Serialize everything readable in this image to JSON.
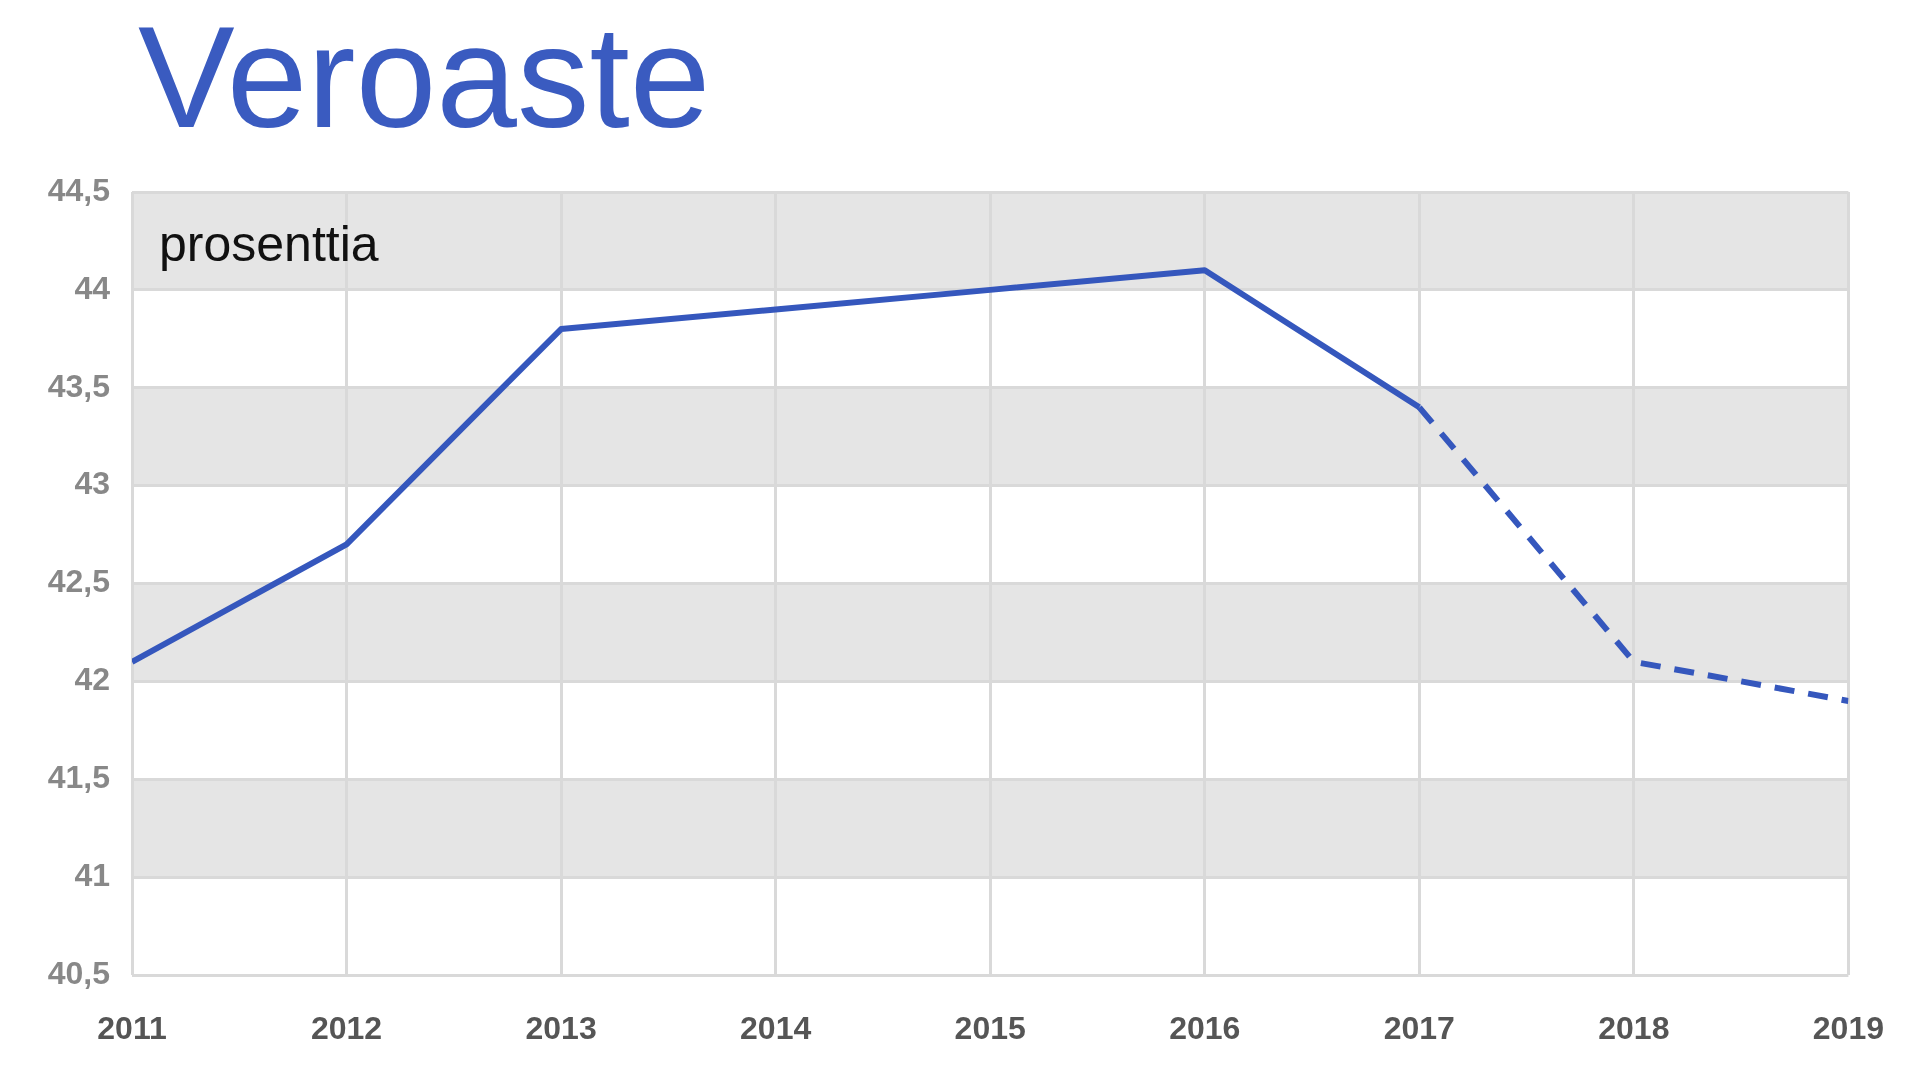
{
  "chart_data": {
    "type": "line",
    "title": "Veroaste",
    "ylabel": "prosenttia",
    "x": [
      2011,
      2012,
      2013,
      2014,
      2015,
      2016,
      2017,
      2018,
      2019
    ],
    "xlim": [
      2011,
      2019
    ],
    "xticks": [
      2011,
      2012,
      2013,
      2014,
      2015,
      2016,
      2017,
      2018,
      2019
    ],
    "ylim": [
      40.5,
      44.5
    ],
    "yticks": [
      {
        "value": 40.5,
        "label": "40,5"
      },
      41,
      {
        "value": 41.5,
        "label": "41,5"
      },
      42,
      {
        "value": 42.5,
        "label": "42,5"
      },
      43,
      {
        "value": 43.5,
        "label": "43,5"
      },
      44,
      {
        "value": 44.5,
        "label": "44,5"
      }
    ],
    "series": [
      {
        "color": "#3557bd",
        "line_style": "solid",
        "values": [
          42.1,
          42.7,
          43.8,
          43.9,
          44.0,
          44.1,
          43.4,
          null,
          null
        ]
      },
      {
        "color": "#3557bd",
        "line_style": "dashed",
        "values": [
          null,
          null,
          null,
          null,
          null,
          null,
          43.4,
          42.1,
          41.9
        ]
      }
    ],
    "bands": [
      {
        "axis": "y",
        "from": 41,
        "to": 41.5,
        "color": "#e5e5e5"
      },
      {
        "axis": "y",
        "from": 42,
        "to": 42.5,
        "color": "#e5e5e5"
      },
      {
        "axis": "y",
        "from": 43,
        "to": 43.5,
        "color": "#e5e5e5"
      },
      {
        "axis": "y",
        "from": 44,
        "to": 44.5,
        "color": "#e5e5e5"
      }
    ],
    "grid": true
  }
}
